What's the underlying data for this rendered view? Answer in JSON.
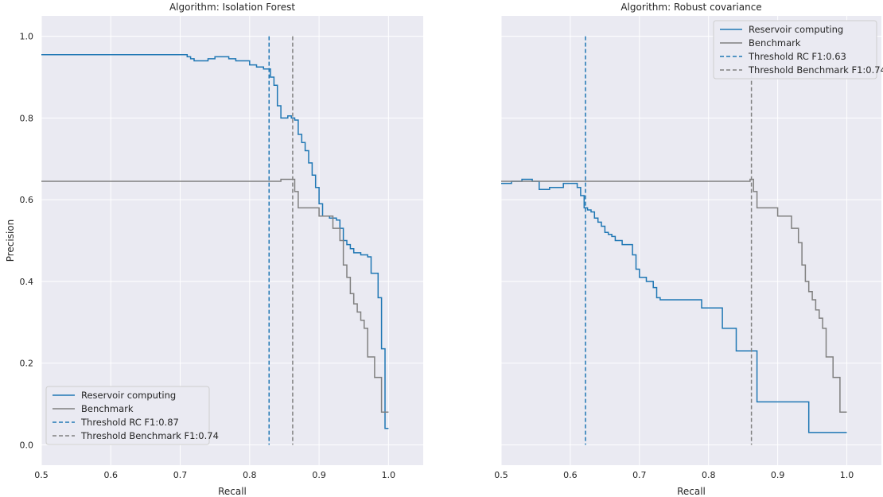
{
  "chart_data": [
    {
      "type": "line",
      "title": "Algorithm: Isolation Forest",
      "xlabel": "Recall",
      "ylabel": "Precision",
      "xlim": [
        0.5,
        1.05
      ],
      "ylim": [
        -0.05,
        1.05
      ],
      "xticks": [
        "0.5",
        "0.6",
        "0.7",
        "0.8",
        "0.9",
        "1.0"
      ],
      "yticks": [
        "0.0",
        "0.2",
        "0.4",
        "0.6",
        "0.8",
        "1.0"
      ],
      "grid": true,
      "legend_position": "lower-left",
      "series": [
        {
          "name": "Reservoir computing",
          "color": "#1f77b4",
          "style": "step",
          "points": [
            [
              0.5,
              0.955
            ],
            [
              0.7,
              0.955
            ],
            [
              0.71,
              0.95
            ],
            [
              0.715,
              0.945
            ],
            [
              0.72,
              0.94
            ],
            [
              0.74,
              0.945
            ],
            [
              0.75,
              0.95
            ],
            [
              0.77,
              0.945
            ],
            [
              0.78,
              0.94
            ],
            [
              0.8,
              0.93
            ],
            [
              0.81,
              0.925
            ],
            [
              0.82,
              0.92
            ],
            [
              0.83,
              0.9
            ],
            [
              0.835,
              0.88
            ],
            [
              0.84,
              0.83
            ],
            [
              0.845,
              0.8
            ],
            [
              0.855,
              0.805
            ],
            [
              0.86,
              0.8
            ],
            [
              0.865,
              0.795
            ],
            [
              0.87,
              0.76
            ],
            [
              0.875,
              0.74
            ],
            [
              0.88,
              0.72
            ],
            [
              0.885,
              0.69
            ],
            [
              0.89,
              0.66
            ],
            [
              0.895,
              0.63
            ],
            [
              0.9,
              0.59
            ],
            [
              0.905,
              0.56
            ],
            [
              0.915,
              0.555
            ],
            [
              0.925,
              0.55
            ],
            [
              0.93,
              0.53
            ],
            [
              0.935,
              0.5
            ],
            [
              0.94,
              0.49
            ],
            [
              0.945,
              0.48
            ],
            [
              0.95,
              0.47
            ],
            [
              0.96,
              0.465
            ],
            [
              0.97,
              0.46
            ],
            [
              0.975,
              0.42
            ],
            [
              0.985,
              0.36
            ],
            [
              0.99,
              0.235
            ],
            [
              0.995,
              0.04
            ],
            [
              1.0,
              0.04
            ]
          ]
        },
        {
          "name": "Benchmark",
          "color": "#808080",
          "style": "step",
          "points": [
            [
              0.5,
              0.645
            ],
            [
              0.835,
              0.645
            ],
            [
              0.845,
              0.65
            ],
            [
              0.86,
              0.65
            ],
            [
              0.865,
              0.62
            ],
            [
              0.87,
              0.58
            ],
            [
              0.895,
              0.58
            ],
            [
              0.9,
              0.56
            ],
            [
              0.92,
              0.53
            ],
            [
              0.93,
              0.5
            ],
            [
              0.935,
              0.44
            ],
            [
              0.94,
              0.41
            ],
            [
              0.945,
              0.37
            ],
            [
              0.95,
              0.345
            ],
            [
              0.955,
              0.325
            ],
            [
              0.96,
              0.305
            ],
            [
              0.965,
              0.285
            ],
            [
              0.97,
              0.215
            ],
            [
              0.98,
              0.165
            ],
            [
              0.99,
              0.08
            ],
            [
              1.0,
              0.08
            ]
          ]
        }
      ],
      "thresholds": [
        {
          "name": "Threshold RC F1:0.87",
          "x": 0.828,
          "color": "#1f77b4"
        },
        {
          "name": "Threshold Benchmark F1:0.74",
          "x": 0.862,
          "color": "#808080"
        }
      ]
    },
    {
      "type": "line",
      "title": "Algorithm: Robust covariance",
      "xlabel": "Recall",
      "ylabel": "",
      "xlim": [
        0.5,
        1.05
      ],
      "ylim": [
        -0.05,
        1.05
      ],
      "xticks": [
        "0.5",
        "0.6",
        "0.7",
        "0.8",
        "0.9",
        "1.0"
      ],
      "yticks": [],
      "grid": true,
      "legend_position": "upper-right",
      "series": [
        {
          "name": "Reservoir computing",
          "color": "#1f77b4",
          "style": "step",
          "points": [
            [
              0.5,
              0.64
            ],
            [
              0.515,
              0.645
            ],
            [
              0.53,
              0.65
            ],
            [
              0.545,
              0.645
            ],
            [
              0.555,
              0.625
            ],
            [
              0.57,
              0.63
            ],
            [
              0.59,
              0.64
            ],
            [
              0.61,
              0.63
            ],
            [
              0.615,
              0.61
            ],
            [
              0.62,
              0.58
            ],
            [
              0.625,
              0.575
            ],
            [
              0.63,
              0.57
            ],
            [
              0.635,
              0.555
            ],
            [
              0.64,
              0.545
            ],
            [
              0.645,
              0.535
            ],
            [
              0.65,
              0.52
            ],
            [
              0.655,
              0.515
            ],
            [
              0.66,
              0.51
            ],
            [
              0.665,
              0.5
            ],
            [
              0.675,
              0.49
            ],
            [
              0.69,
              0.465
            ],
            [
              0.695,
              0.43
            ],
            [
              0.7,
              0.41
            ],
            [
              0.71,
              0.4
            ],
            [
              0.72,
              0.385
            ],
            [
              0.725,
              0.36
            ],
            [
              0.73,
              0.355
            ],
            [
              0.785,
              0.355
            ],
            [
              0.79,
              0.335
            ],
            [
              0.815,
              0.335
            ],
            [
              0.82,
              0.285
            ],
            [
              0.835,
              0.285
            ],
            [
              0.84,
              0.23
            ],
            [
              0.865,
              0.23
            ],
            [
              0.87,
              0.105
            ],
            [
              0.94,
              0.105
            ],
            [
              0.945,
              0.03
            ],
            [
              1.0,
              0.03
            ]
          ]
        },
        {
          "name": "Benchmark",
          "color": "#808080",
          "style": "step",
          "points": [
            [
              0.5,
              0.645
            ],
            [
              0.855,
              0.645
            ],
            [
              0.86,
              0.65
            ],
            [
              0.865,
              0.62
            ],
            [
              0.87,
              0.58
            ],
            [
              0.895,
              0.58
            ],
            [
              0.9,
              0.56
            ],
            [
              0.92,
              0.53
            ],
            [
              0.93,
              0.495
            ],
            [
              0.935,
              0.44
            ],
            [
              0.94,
              0.4
            ],
            [
              0.945,
              0.375
            ],
            [
              0.95,
              0.355
            ],
            [
              0.955,
              0.33
            ],
            [
              0.96,
              0.31
            ],
            [
              0.965,
              0.285
            ],
            [
              0.97,
              0.215
            ],
            [
              0.98,
              0.165
            ],
            [
              0.99,
              0.08
            ],
            [
              1.0,
              0.08
            ]
          ]
        }
      ],
      "thresholds": [
        {
          "name": "Threshold RC F1:0.63",
          "x": 0.622,
          "color": "#1f77b4"
        },
        {
          "name": "Threshold Benchmark F1:0.74",
          "x": 0.862,
          "color": "#808080"
        }
      ]
    }
  ]
}
